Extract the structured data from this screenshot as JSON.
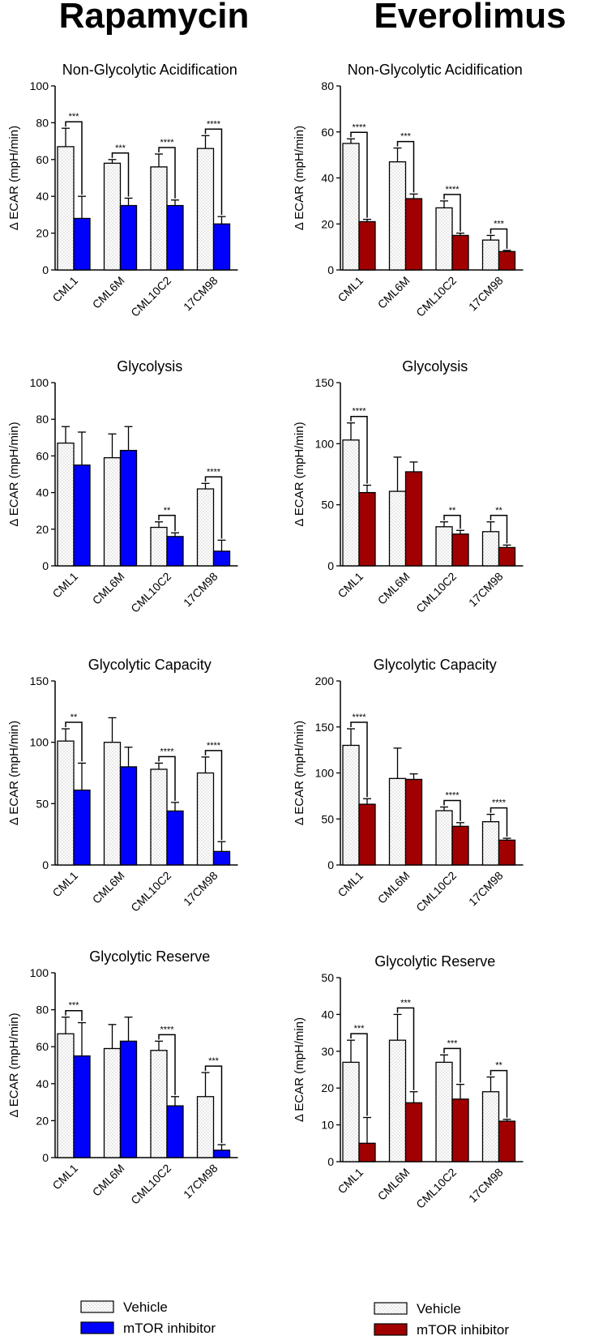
{
  "figure": {
    "left_title": "Rapamycin",
    "right_title": "Everolimus"
  },
  "colors": {
    "vehicle_fill": "#ffffff",
    "vehicle_dots": "#b8b8b8",
    "rapamycin_inhibitor": "#0000ff",
    "everolimus_inhibitor": "#a10000",
    "axis": "#000000"
  },
  "legends": [
    {
      "vehicle": "Vehicle",
      "inhibitor": "mTOR inhibitor"
    },
    {
      "vehicle": "Vehicle",
      "inhibitor": "mTOR inhibitor"
    }
  ],
  "chart_data": [
    {
      "type": "bar",
      "column": "left",
      "title": "Non-Glycolytic Acidification",
      "ylabel": "Δ ECAR (mpH/min)",
      "categories": [
        "CML1",
        "CML6M",
        "CML10C2",
        "17CM98"
      ],
      "ylim": [
        0,
        100
      ],
      "yticks": [
        "0",
        "20",
        "40",
        "60",
        "80",
        "100"
      ],
      "series": [
        {
          "name": "Vehicle",
          "values": [
            67,
            58,
            56,
            66
          ],
          "errors": [
            10,
            2,
            7,
            7
          ]
        },
        {
          "name": "mTOR inhibitor",
          "values": [
            28,
            35,
            35,
            25
          ],
          "errors": [
            12,
            4,
            3,
            4
          ]
        }
      ],
      "significance": [
        "***",
        "***",
        "****",
        "****"
      ]
    },
    {
      "type": "bar",
      "column": "right",
      "title": "Non-Glycolytic Acidification",
      "ylabel": "Δ ECAR (mpH/min)",
      "categories": [
        "CML1",
        "CML6M",
        "CML10C2",
        "17CM98"
      ],
      "ylim": [
        0,
        80
      ],
      "yticks": [
        "0",
        "20",
        "40",
        "60",
        "80"
      ],
      "series": [
        {
          "name": "Vehicle",
          "values": [
            55,
            47,
            27,
            13
          ],
          "errors": [
            2,
            6,
            3,
            2
          ]
        },
        {
          "name": "mTOR inhibitor",
          "values": [
            21,
            31,
            15,
            8
          ],
          "errors": [
            1,
            2,
            1,
            0.5
          ]
        }
      ],
      "significance": [
        "****",
        "***",
        "****",
        "***"
      ]
    },
    {
      "type": "bar",
      "column": "left",
      "title": "Glycolysis",
      "ylabel": "Δ ECAR (mpH/min)",
      "categories": [
        "CML1",
        "CML6M",
        "CML10C2",
        "17CM98"
      ],
      "ylim": [
        0,
        100
      ],
      "yticks": [
        "0",
        "20",
        "40",
        "60",
        "80",
        "100"
      ],
      "series": [
        {
          "name": "Vehicle",
          "values": [
            67,
            59,
            21,
            42
          ],
          "errors": [
            9,
            13,
            3,
            3
          ]
        },
        {
          "name": "mTOR inhibitor",
          "values": [
            55,
            63,
            16,
            8
          ],
          "errors": [
            18,
            13,
            2,
            6
          ]
        }
      ],
      "significance": [
        "",
        "",
        "**",
        "****"
      ]
    },
    {
      "type": "bar",
      "column": "right",
      "title": "Glycolysis",
      "ylabel": "Δ ECAR (mpH/min)",
      "categories": [
        "CML1",
        "CML6M",
        "CML10C2",
        "17CM98"
      ],
      "ylim": [
        0,
        150
      ],
      "yticks": [
        "0",
        "50",
        "100",
        "150"
      ],
      "series": [
        {
          "name": "Vehicle",
          "values": [
            103,
            61,
            32,
            28
          ],
          "errors": [
            14,
            28,
            4,
            8
          ]
        },
        {
          "name": "mTOR inhibitor",
          "values": [
            60,
            77,
            26,
            15
          ],
          "errors": [
            6,
            8,
            3,
            2
          ]
        }
      ],
      "significance": [
        "****",
        "",
        "**",
        "**"
      ]
    },
    {
      "type": "bar",
      "column": "left",
      "title": "Glycolytic Capacity",
      "ylabel": "Δ ECAR (mpH/min)",
      "categories": [
        "CML1",
        "CML6M",
        "CML10C2",
        "17CM98"
      ],
      "ylim": [
        0,
        150
      ],
      "yticks": [
        "0",
        "50",
        "100",
        "150"
      ],
      "series": [
        {
          "name": "Vehicle",
          "values": [
            101,
            100,
            78,
            75
          ],
          "errors": [
            10,
            20,
            5,
            13
          ]
        },
        {
          "name": "mTOR inhibitor",
          "values": [
            61,
            80,
            44,
            11
          ],
          "errors": [
            22,
            16,
            7,
            8
          ]
        }
      ],
      "significance": [
        "**",
        "",
        "****",
        "****"
      ]
    },
    {
      "type": "bar",
      "column": "right",
      "title": "Glycolytic Capacity",
      "ylabel": "Δ ECAR (mpH/min)",
      "categories": [
        "CML1",
        "CML6M",
        "CML10C2",
        "17CM98"
      ],
      "ylim": [
        0,
        200
      ],
      "yticks": [
        "0",
        "50",
        "100",
        "150",
        "200"
      ],
      "series": [
        {
          "name": "Vehicle",
          "values": [
            130,
            94,
            59,
            47
          ],
          "errors": [
            18,
            33,
            4,
            8
          ]
        },
        {
          "name": "mTOR inhibitor",
          "values": [
            66,
            93,
            42,
            27
          ],
          "errors": [
            6,
            6,
            4,
            2
          ]
        }
      ],
      "significance": [
        "****",
        "",
        "****",
        "****"
      ]
    },
    {
      "type": "bar",
      "column": "left",
      "title": "Glycolytic Reserve",
      "ylabel": "Δ ECAR (mpH/min)",
      "categories": [
        "CML1",
        "CML6M",
        "CML10C2",
        "17CM98"
      ],
      "ylim": [
        0,
        100
      ],
      "yticks": [
        "0",
        "20",
        "40",
        "60",
        "80",
        "100"
      ],
      "series": [
        {
          "name": "Vehicle",
          "values": [
            67,
            59,
            58,
            33
          ],
          "errors": [
            9,
            13,
            5,
            13
          ]
        },
        {
          "name": "mTOR inhibitor",
          "values": [
            55,
            63,
            28,
            4
          ],
          "errors": [
            18,
            13,
            5,
            3
          ]
        }
      ],
      "significance": [
        "***",
        "",
        "****",
        "***"
      ]
    },
    {
      "type": "bar",
      "column": "right",
      "title": "Glycolytic Reserve",
      "ylabel": "Δ ECAR (mpH/min)",
      "categories": [
        "CML1",
        "CML6M",
        "CML10C2",
        "17CM98"
      ],
      "ylim": [
        0,
        50
      ],
      "yticks": [
        "0",
        "10",
        "20",
        "30",
        "40",
        "50"
      ],
      "series": [
        {
          "name": "Vehicle",
          "values": [
            27,
            33,
            27,
            19
          ],
          "errors": [
            6,
            7,
            2,
            4
          ]
        },
        {
          "name": "mTOR inhibitor",
          "values": [
            5,
            16,
            17,
            11
          ],
          "errors": [
            7,
            3,
            4,
            0.5
          ]
        }
      ],
      "significance": [
        "***",
        "***",
        "***",
        "**"
      ]
    }
  ]
}
